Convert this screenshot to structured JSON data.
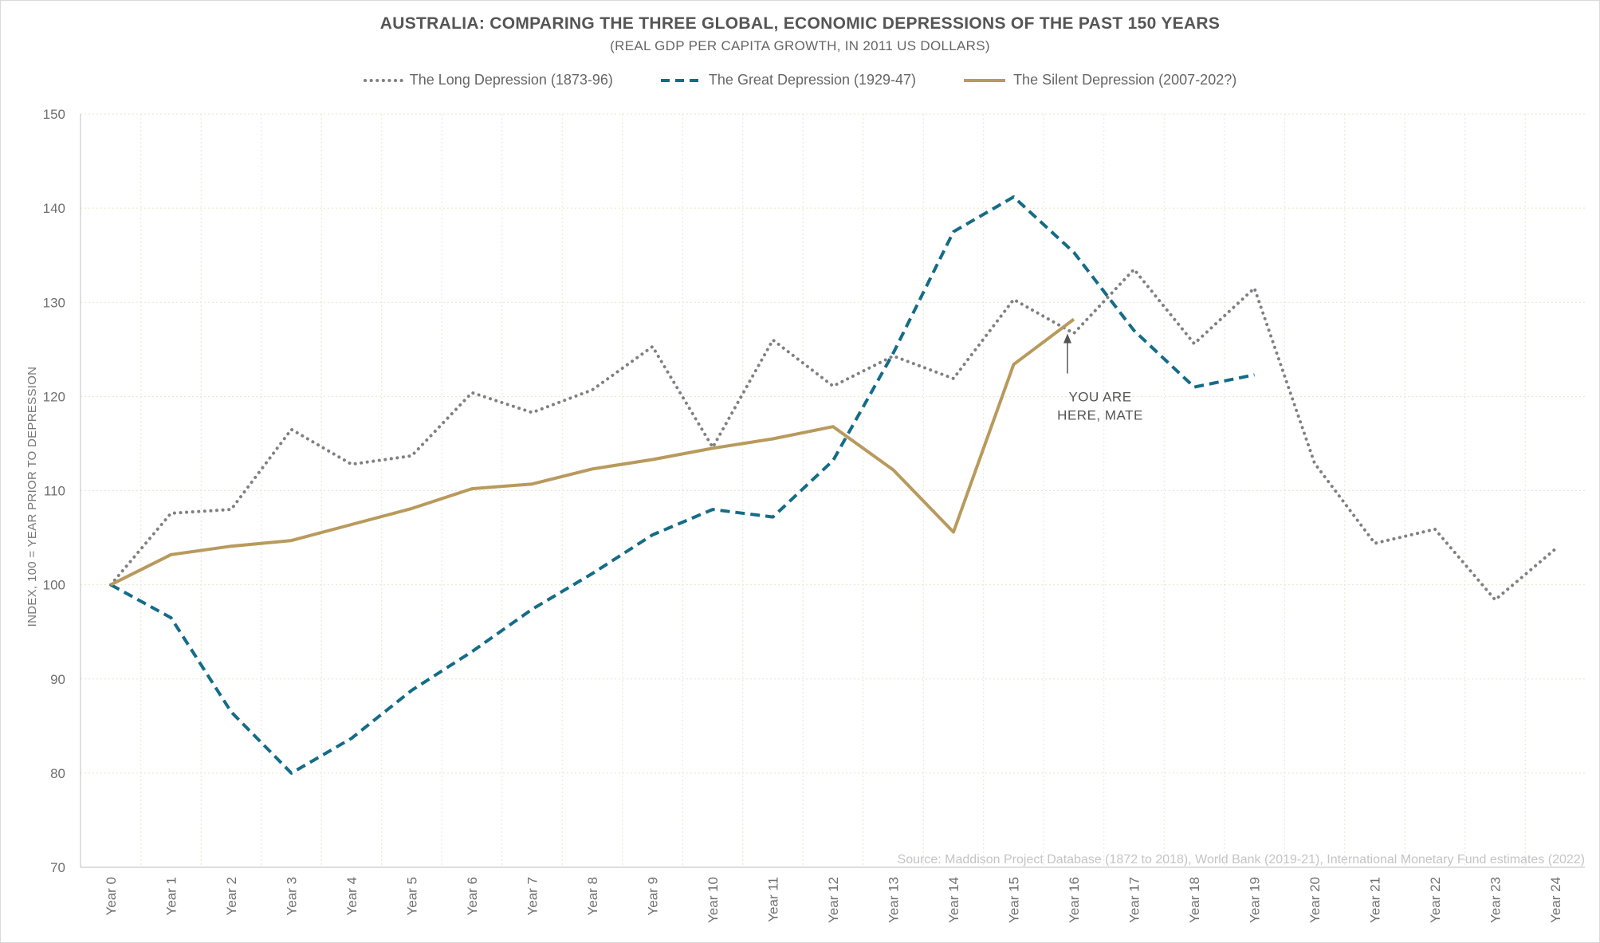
{
  "chart_data": {
    "type": "line",
    "title": "AUSTRALIA: COMPARING THE THREE GLOBAL, ECONOMIC DEPRESSIONS OF THE PAST 150 YEARS",
    "subtitle": "(REAL GDP PER CAPITA GROWTH, IN 2011 US DOLLARS)",
    "ylabel": "INDEX, 100 = YEAR PRIOR TO DEPRESSION",
    "ylim": [
      70,
      150
    ],
    "yticks": [
      "70",
      "80",
      "90",
      "100",
      "110",
      "120",
      "130",
      "140",
      "150"
    ],
    "categories": [
      "Year 0",
      "Year 1",
      "Year 2",
      "Year 3",
      "Year 4",
      "Year 5",
      "Year 6",
      "Year 7",
      "Year 8",
      "Year 9",
      "Year 10",
      "Year 11",
      "Year 12",
      "Year 13",
      "Year 14",
      "Year 15",
      "Year 16",
      "Year 17",
      "Year 18",
      "Year 19",
      "Year 20",
      "Year 21",
      "Year 22",
      "Year 23",
      "Year 24"
    ],
    "grid": true,
    "legend_position": "top-center",
    "series": [
      {
        "name": "The Long Depression (1873-96)",
        "style": "dotted",
        "color": "#808080",
        "values": [
          100,
          107.6,
          108,
          116.5,
          112.8,
          113.7,
          120.4,
          118.3,
          120.7,
          125.3,
          114.6,
          126,
          121.1,
          124.3,
          121.9,
          130.3,
          126.7,
          133.5,
          125.6,
          131.5,
          112.9,
          104.4,
          105.9,
          98.4,
          103.8
        ]
      },
      {
        "name": "The Great Depression (1929-47)",
        "style": "dashed",
        "color": "#146c88",
        "values": [
          100,
          96.5,
          86.5,
          80,
          83.7,
          88.8,
          92.9,
          97.4,
          101.2,
          105.3,
          108,
          107.2,
          113.2,
          124.6,
          137.5,
          141.2,
          135.3,
          127,
          121,
          122.3,
          null,
          null,
          null,
          null,
          null
        ]
      },
      {
        "name": "The Silent Depression (2007-202?)",
        "style": "solid",
        "color": "#b89a5c",
        "values": [
          100,
          103.2,
          104.1,
          104.7,
          106.4,
          108.1,
          110.2,
          110.7,
          112.3,
          113.3,
          114.5,
          115.5,
          116.8,
          112.2,
          105.6,
          123.4,
          128.2,
          null,
          null,
          null,
          null,
          null,
          null,
          null,
          null
        ]
      }
    ],
    "annotations": [
      {
        "lines": [
          "YOU ARE",
          "HERE, MATE"
        ],
        "x": "Year 16",
        "points_to": 128.2
      }
    ],
    "source": "Source: Maddison Project Database (1872 to 2018), World Bank (2019-21), International Monetary Fund estimates (2022)"
  }
}
